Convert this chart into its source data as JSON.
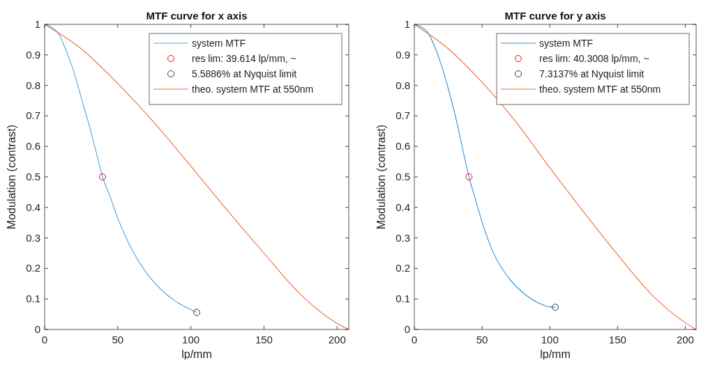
{
  "chart_data": [
    {
      "type": "line",
      "title": "MTF curve for x axis",
      "xlabel": "lp/mm",
      "ylabel": "Modulation (contrast)",
      "xlim": [
        0,
        208
      ],
      "ylim": [
        0,
        1
      ],
      "xticks": [
        0,
        50,
        100,
        150,
        200
      ],
      "yticks": [
        0,
        0.1,
        0.2,
        0.3,
        0.4,
        0.5,
        0.6,
        0.7,
        0.8,
        0.9,
        1
      ],
      "legend": "top right",
      "series": [
        {
          "name": "system MTF",
          "color": "#4da6e0",
          "x": [
            0,
            5,
            10,
            15,
            20,
            25,
            30,
            35,
            39.614,
            45,
            50,
            55,
            60,
            70,
            80,
            90,
            100,
            104
          ],
          "values": [
            1,
            0.99,
            0.966,
            0.91,
            0.844,
            0.76,
            0.677,
            0.586,
            0.5,
            0.433,
            0.365,
            0.308,
            0.259,
            0.183,
            0.129,
            0.091,
            0.065,
            0.056
          ]
        },
        {
          "name": "res lim: 39.614 lp/mm, ~",
          "type": "scatter",
          "marker": "circle",
          "color": "#ff0000",
          "x": [
            39.614
          ],
          "values": [
            0.5
          ]
        },
        {
          "name": "5.5886% at Nyquist limit",
          "type": "scatter",
          "marker": "circle",
          "color": "#333333",
          "x": [
            104
          ],
          "values": [
            0.056
          ]
        },
        {
          "name": "theo. system MTF at 550nm",
          "color": "#e8703a",
          "x": [
            0,
            25,
            50,
            75,
            100,
            125,
            150,
            175,
            200,
            208
          ],
          "values": [
            1,
            0.92,
            0.806,
            0.677,
            0.535,
            0.39,
            0.25,
            0.115,
            0.02,
            0
          ]
        }
      ]
    },
    {
      "type": "line",
      "title": "MTF curve for y axis",
      "xlabel": "lp/mm",
      "ylabel": "Modulation (contrast)",
      "xlim": [
        0,
        208
      ],
      "ylim": [
        0,
        1
      ],
      "xticks": [
        0,
        50,
        100,
        150,
        200
      ],
      "yticks": [
        0,
        0.1,
        0.2,
        0.3,
        0.4,
        0.5,
        0.6,
        0.7,
        0.8,
        0.9,
        1
      ],
      "legend": "top right",
      "series": [
        {
          "name": "system MTF",
          "color": "#2f8fd8",
          "x": [
            0,
            5,
            10,
            15,
            20,
            25,
            30,
            35,
            40.3008,
            45,
            50,
            60,
            70,
            80,
            90,
            100,
            104
          ],
          "values": [
            1,
            0.992,
            0.973,
            0.927,
            0.866,
            0.79,
            0.705,
            0.605,
            0.5,
            0.428,
            0.352,
            0.236,
            0.167,
            0.121,
            0.091,
            0.074,
            0.073
          ]
        },
        {
          "name": "res lim: 40.3008 lp/mm, ~",
          "type": "scatter",
          "marker": "circle",
          "color": "#ff0000",
          "x": [
            40.3008
          ],
          "values": [
            0.5
          ]
        },
        {
          "name": "7.3137% at Nyquist limit",
          "type": "scatter",
          "marker": "circle",
          "color": "#333333",
          "x": [
            104
          ],
          "values": [
            0.073
          ]
        },
        {
          "name": "theo. system MTF at 550nm",
          "color": "#e8703a",
          "x": [
            0,
            25,
            50,
            75,
            100,
            125,
            150,
            175,
            200,
            208
          ],
          "values": [
            1,
            0.92,
            0.81,
            0.68,
            0.53,
            0.385,
            0.245,
            0.115,
            0.022,
            0
          ]
        }
      ]
    }
  ]
}
